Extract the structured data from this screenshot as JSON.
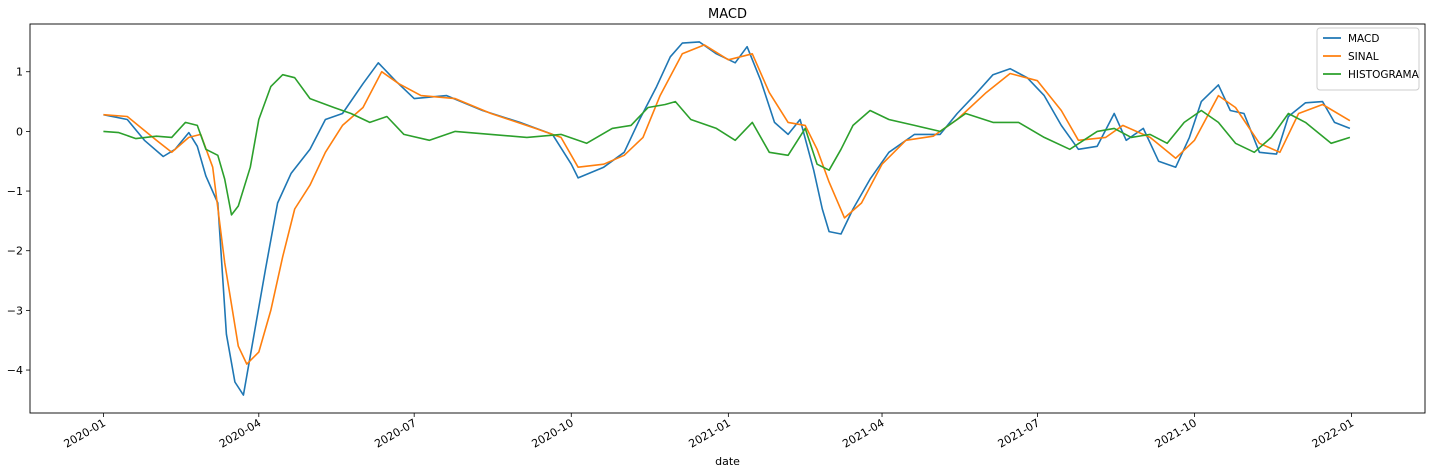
{
  "chart_data": {
    "type": "line",
    "title": "MACD",
    "xlabel": "date",
    "ylabel": "",
    "x_ticks": [
      "2020-01",
      "2020-04",
      "2020-07",
      "2020-10",
      "2021-01",
      "2021-04",
      "2021-07",
      "2021-10",
      "2022-01"
    ],
    "y_ticks": [
      "1",
      "0",
      "−1",
      "−2",
      "−3",
      "−4"
    ],
    "ylim": [
      -4.72,
      1.8
    ],
    "xlim": [
      "2019-11-19",
      "2022-02-13"
    ],
    "grid": false,
    "legend_position": "top-right",
    "series": [
      {
        "name": "MACD",
        "color": "#1f77b4",
        "points": [
          [
            "2020-01-01",
            0.28
          ],
          [
            "2020-01-15",
            0.2
          ],
          [
            "2020-01-25",
            -0.15
          ],
          [
            "2020-02-05",
            -0.42
          ],
          [
            "2020-02-12",
            -0.3
          ],
          [
            "2020-02-20",
            -0.02
          ],
          [
            "2020-02-25",
            -0.25
          ],
          [
            "2020-03-01",
            -0.75
          ],
          [
            "2020-03-08",
            -1.2
          ],
          [
            "2020-03-13",
            -3.4
          ],
          [
            "2020-03-18",
            -4.2
          ],
          [
            "2020-03-23",
            -4.42
          ],
          [
            "2020-03-28",
            -3.6
          ],
          [
            "2020-04-05",
            -2.3
          ],
          [
            "2020-04-12",
            -1.2
          ],
          [
            "2020-04-20",
            -0.7
          ],
          [
            "2020-05-01",
            -0.3
          ],
          [
            "2020-05-10",
            0.2
          ],
          [
            "2020-05-20",
            0.3
          ],
          [
            "2020-06-01",
            0.8
          ],
          [
            "2020-06-10",
            1.15
          ],
          [
            "2020-06-20",
            0.85
          ],
          [
            "2020-07-01",
            0.55
          ],
          [
            "2020-07-20",
            0.6
          ],
          [
            "2020-08-10",
            0.35
          ],
          [
            "2020-09-01",
            0.15
          ],
          [
            "2020-09-20",
            -0.05
          ],
          [
            "2020-10-01",
            -0.55
          ],
          [
            "2020-10-05",
            -0.78
          ],
          [
            "2020-10-20",
            -0.6
          ],
          [
            "2020-11-01",
            -0.35
          ],
          [
            "2020-11-10",
            0.2
          ],
          [
            "2020-11-20",
            0.75
          ],
          [
            "2020-11-28",
            1.25
          ],
          [
            "2020-12-05",
            1.48
          ],
          [
            "2020-12-15",
            1.5
          ],
          [
            "2020-12-25",
            1.3
          ],
          [
            "2021-01-05",
            1.15
          ],
          [
            "2021-01-12",
            1.42
          ],
          [
            "2021-01-20",
            0.85
          ],
          [
            "2021-01-28",
            0.15
          ],
          [
            "2021-02-05",
            -0.05
          ],
          [
            "2021-02-12",
            0.2
          ],
          [
            "2021-02-20",
            -0.65
          ],
          [
            "2021-02-25",
            -1.3
          ],
          [
            "2021-03-01",
            -1.68
          ],
          [
            "2021-03-08",
            -1.72
          ],
          [
            "2021-03-15",
            -1.3
          ],
          [
            "2021-03-25",
            -0.8
          ],
          [
            "2021-04-05",
            -0.35
          ],
          [
            "2021-04-20",
            -0.05
          ],
          [
            "2021-05-05",
            -0.05
          ],
          [
            "2021-05-15",
            0.3
          ],
          [
            "2021-05-25",
            0.6
          ],
          [
            "2021-06-05",
            0.95
          ],
          [
            "2021-06-15",
            1.05
          ],
          [
            "2021-06-25",
            0.9
          ],
          [
            "2021-07-05",
            0.6
          ],
          [
            "2021-07-15",
            0.1
          ],
          [
            "2021-07-25",
            -0.3
          ],
          [
            "2021-08-05",
            -0.25
          ],
          [
            "2021-08-15",
            0.3
          ],
          [
            "2021-08-22",
            -0.15
          ],
          [
            "2021-09-01",
            0.05
          ],
          [
            "2021-09-10",
            -0.5
          ],
          [
            "2021-09-20",
            -0.6
          ],
          [
            "2021-09-28",
            -0.1
          ],
          [
            "2021-10-05",
            0.5
          ],
          [
            "2021-10-15",
            0.78
          ],
          [
            "2021-10-22",
            0.35
          ],
          [
            "2021-10-30",
            0.3
          ],
          [
            "2021-11-08",
            -0.35
          ],
          [
            "2021-11-18",
            -0.38
          ],
          [
            "2021-11-25",
            0.25
          ],
          [
            "2021-12-05",
            0.48
          ],
          [
            "2021-12-15",
            0.5
          ],
          [
            "2021-12-22",
            0.15
          ],
          [
            "2021-12-31",
            0.05
          ]
        ]
      },
      {
        "name": "SINAL",
        "color": "#ff7f0e",
        "points": [
          [
            "2020-01-01",
            0.28
          ],
          [
            "2020-01-15",
            0.25
          ],
          [
            "2020-02-01",
            -0.15
          ],
          [
            "2020-02-10",
            -0.35
          ],
          [
            "2020-02-20",
            -0.1
          ],
          [
            "2020-02-27",
            -0.05
          ],
          [
            "2020-03-05",
            -0.6
          ],
          [
            "2020-03-12",
            -2.2
          ],
          [
            "2020-03-20",
            -3.6
          ],
          [
            "2020-03-25",
            -3.9
          ],
          [
            "2020-04-01",
            -3.7
          ],
          [
            "2020-04-08",
            -3.0
          ],
          [
            "2020-04-15",
            -2.1
          ],
          [
            "2020-04-22",
            -1.3
          ],
          [
            "2020-05-01",
            -0.9
          ],
          [
            "2020-05-10",
            -0.35
          ],
          [
            "2020-05-20",
            0.1
          ],
          [
            "2020-06-01",
            0.4
          ],
          [
            "2020-06-12",
            1.0
          ],
          [
            "2020-06-22",
            0.8
          ],
          [
            "2020-07-05",
            0.6
          ],
          [
            "2020-07-25",
            0.55
          ],
          [
            "2020-08-15",
            0.3
          ],
          [
            "2020-09-10",
            0.05
          ],
          [
            "2020-09-25",
            -0.1
          ],
          [
            "2020-10-05",
            -0.6
          ],
          [
            "2020-10-20",
            -0.55
          ],
          [
            "2020-11-01",
            -0.4
          ],
          [
            "2020-11-12",
            -0.1
          ],
          [
            "2020-11-22",
            0.6
          ],
          [
            "2020-12-05",
            1.3
          ],
          [
            "2020-12-18",
            1.45
          ],
          [
            "2021-01-01",
            1.2
          ],
          [
            "2021-01-15",
            1.3
          ],
          [
            "2021-01-25",
            0.65
          ],
          [
            "2021-02-05",
            0.15
          ],
          [
            "2021-02-15",
            0.1
          ],
          [
            "2021-02-22",
            -0.3
          ],
          [
            "2021-03-01",
            -0.85
          ],
          [
            "2021-03-10",
            -1.45
          ],
          [
            "2021-03-20",
            -1.2
          ],
          [
            "2021-04-01",
            -0.55
          ],
          [
            "2021-04-15",
            -0.15
          ],
          [
            "2021-05-01",
            -0.08
          ],
          [
            "2021-05-15",
            0.2
          ],
          [
            "2021-06-01",
            0.65
          ],
          [
            "2021-06-15",
            0.97
          ],
          [
            "2021-07-01",
            0.85
          ],
          [
            "2021-07-15",
            0.35
          ],
          [
            "2021-07-25",
            -0.15
          ],
          [
            "2021-08-10",
            -0.1
          ],
          [
            "2021-08-20",
            0.1
          ],
          [
            "2021-09-05",
            -0.1
          ],
          [
            "2021-09-20",
            -0.45
          ],
          [
            "2021-10-01",
            -0.15
          ],
          [
            "2021-10-15",
            0.6
          ],
          [
            "2021-10-25",
            0.4
          ],
          [
            "2021-11-08",
            -0.2
          ],
          [
            "2021-11-20",
            -0.35
          ],
          [
            "2021-12-01",
            0.3
          ],
          [
            "2021-12-15",
            0.45
          ],
          [
            "2021-12-31",
            0.18
          ]
        ]
      },
      {
        "name": "HISTOGRAMA",
        "color": "#2ca02c",
        "points": [
          [
            "2020-01-01",
            0.0
          ],
          [
            "2020-01-10",
            -0.02
          ],
          [
            "2020-01-20",
            -0.12
          ],
          [
            "2020-02-01",
            -0.08
          ],
          [
            "2020-02-10",
            -0.1
          ],
          [
            "2020-02-18",
            0.15
          ],
          [
            "2020-02-25",
            0.1
          ],
          [
            "2020-03-01",
            -0.3
          ],
          [
            "2020-03-08",
            -0.4
          ],
          [
            "2020-03-12",
            -0.8
          ],
          [
            "2020-03-16",
            -1.4
          ],
          [
            "2020-03-20",
            -1.25
          ],
          [
            "2020-03-27",
            -0.6
          ],
          [
            "2020-04-01",
            0.2
          ],
          [
            "2020-04-08",
            0.75
          ],
          [
            "2020-04-15",
            0.95
          ],
          [
            "2020-04-22",
            0.9
          ],
          [
            "2020-05-01",
            0.55
          ],
          [
            "2020-05-15",
            0.4
          ],
          [
            "2020-05-25",
            0.3
          ],
          [
            "2020-06-05",
            0.15
          ],
          [
            "2020-06-15",
            0.25
          ],
          [
            "2020-06-25",
            -0.05
          ],
          [
            "2020-07-10",
            -0.15
          ],
          [
            "2020-07-25",
            0.0
          ],
          [
            "2020-08-15",
            -0.05
          ],
          [
            "2020-09-05",
            -0.1
          ],
          [
            "2020-09-25",
            -0.05
          ],
          [
            "2020-10-10",
            -0.2
          ],
          [
            "2020-10-25",
            0.05
          ],
          [
            "2020-11-05",
            0.1
          ],
          [
            "2020-11-15",
            0.4
          ],
          [
            "2020-11-25",
            0.45
          ],
          [
            "2020-12-01",
            0.5
          ],
          [
            "2020-12-10",
            0.2
          ],
          [
            "2020-12-25",
            0.05
          ],
          [
            "2021-01-05",
            -0.15
          ],
          [
            "2021-01-15",
            0.15
          ],
          [
            "2021-01-25",
            -0.35
          ],
          [
            "2021-02-05",
            -0.4
          ],
          [
            "2021-02-15",
            0.05
          ],
          [
            "2021-02-22",
            -0.55
          ],
          [
            "2021-03-01",
            -0.65
          ],
          [
            "2021-03-08",
            -0.3
          ],
          [
            "2021-03-15",
            0.1
          ],
          [
            "2021-03-25",
            0.35
          ],
          [
            "2021-04-05",
            0.2
          ],
          [
            "2021-04-20",
            0.1
          ],
          [
            "2021-05-05",
            0.0
          ],
          [
            "2021-05-20",
            0.3
          ],
          [
            "2021-06-05",
            0.15
          ],
          [
            "2021-06-20",
            0.15
          ],
          [
            "2021-07-05",
            -0.1
          ],
          [
            "2021-07-20",
            -0.3
          ],
          [
            "2021-08-05",
            0.0
          ],
          [
            "2021-08-15",
            0.05
          ],
          [
            "2021-08-25",
            -0.1
          ],
          [
            "2021-09-05",
            -0.05
          ],
          [
            "2021-09-15",
            -0.2
          ],
          [
            "2021-09-25",
            0.15
          ],
          [
            "2021-10-05",
            0.35
          ],
          [
            "2021-10-15",
            0.15
          ],
          [
            "2021-10-25",
            -0.2
          ],
          [
            "2021-11-05",
            -0.35
          ],
          [
            "2021-11-15",
            -0.1
          ],
          [
            "2021-11-25",
            0.3
          ],
          [
            "2021-12-05",
            0.15
          ],
          [
            "2021-12-20",
            -0.2
          ],
          [
            "2021-12-31",
            -0.1
          ]
        ]
      }
    ]
  }
}
